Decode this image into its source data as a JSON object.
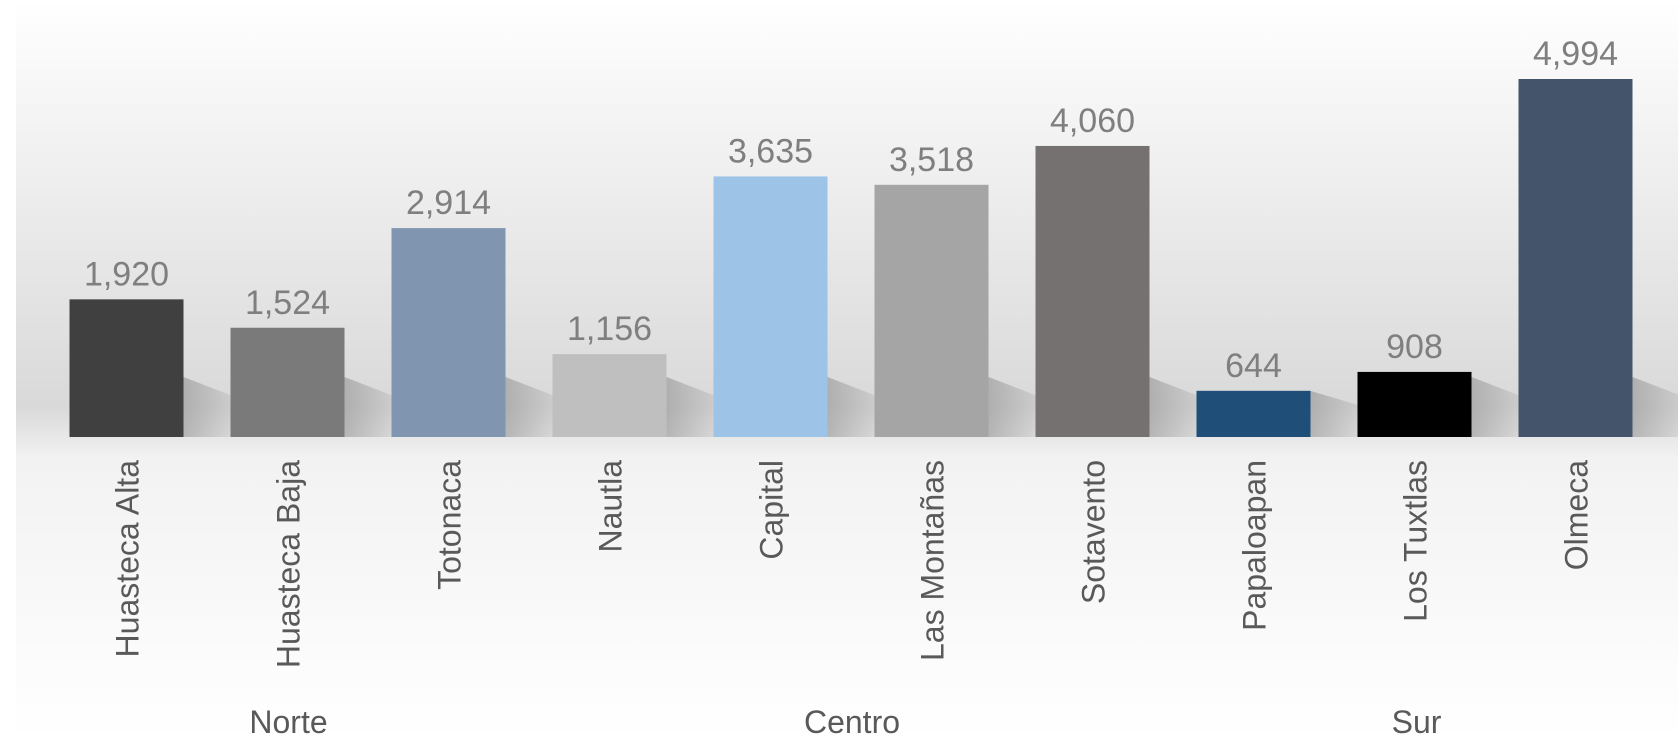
{
  "chart_data": {
    "type": "bar",
    "categories": [
      "Huasteca Alta",
      "Huasteca Baja",
      "Totonaca",
      "Nautla",
      "Capital",
      "Las Montañas",
      "Sotavento",
      "Papaloapan",
      "Los Tuxtlas",
      "Olmeca"
    ],
    "values": [
      1920,
      1524,
      2914,
      1156,
      3635,
      3518,
      4060,
      644,
      908,
      4994
    ],
    "value_labels": [
      "1,920",
      "1,524",
      "2,914",
      "1,156",
      "3,635",
      "3,518",
      "4,060",
      "644",
      "908",
      "4,994"
    ],
    "bar_colors": [
      "#404040",
      "#7a7a7a",
      "#8095b0",
      "#bfbfbf",
      "#9dc3e6",
      "#a5a5a5",
      "#767171",
      "#1f4e79",
      "#000000",
      "#44546a"
    ],
    "groups": [
      {
        "label": "Norte",
        "categories": [
          "Huasteca Alta",
          "Huasteca Baja",
          "Totonaca",
          "Nautla"
        ]
      },
      {
        "label": "Centro",
        "categories": [
          "Capital",
          "Las Montañas",
          "Sotavento",
          "Papaloapan"
        ]
      },
      {
        "label": "Sur",
        "categories": [
          "Los Tuxtlas",
          "Olmeca"
        ]
      }
    ],
    "title": "",
    "xlabel": "",
    "ylabel": "",
    "ylim": [
      0,
      5000
    ],
    "grid": false,
    "legend": "none"
  }
}
